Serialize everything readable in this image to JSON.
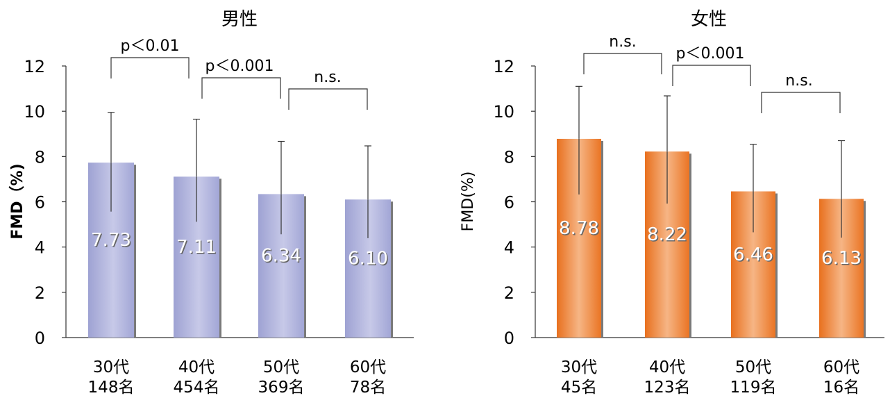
{
  "chart_data": [
    {
      "type": "bar",
      "title": "男性",
      "xlabel": "",
      "ylabel": "FMD（%)",
      "ylim": [
        0,
        12
      ],
      "yticks": [
        0,
        2,
        4,
        6,
        8,
        10,
        12
      ],
      "grid": false,
      "categories": [
        "30代",
        "40代",
        "50代",
        "60代"
      ],
      "counts": [
        "148名",
        "454名",
        "369名",
        "78名"
      ],
      "values": [
        7.73,
        7.11,
        6.34,
        6.1
      ],
      "value_labels": [
        "7.73",
        "7.11",
        "6.34",
        "6.10"
      ],
      "error_upper": [
        9.95,
        9.65,
        8.67,
        8.47
      ],
      "bar_color": "#b3b6dc",
      "significance": [
        {
          "from": 0,
          "to": 1,
          "label": "p＜0.01"
        },
        {
          "from": 1,
          "to": 2,
          "label": "p＜0.001"
        },
        {
          "from": 2,
          "to": 3,
          "label": "n.s."
        }
      ]
    },
    {
      "type": "bar",
      "title": "女性",
      "xlabel": "",
      "ylabel": "FMD(%)",
      "ylim": [
        0,
        12
      ],
      "yticks": [
        0,
        2,
        4,
        6,
        8,
        10,
        12
      ],
      "grid": false,
      "categories": [
        "30代",
        "40代",
        "50代",
        "60代"
      ],
      "counts": [
        "45名",
        "123名",
        "119名",
        "16名"
      ],
      "values": [
        8.78,
        8.22,
        6.46,
        6.13
      ],
      "value_labels": [
        "8.78",
        "8.22",
        "6.46",
        "6.13"
      ],
      "error_upper": [
        11.1,
        10.68,
        8.54,
        8.7
      ],
      "bar_color": "#f08a3c",
      "significance": [
        {
          "from": 0,
          "to": 1,
          "label": "n.s."
        },
        {
          "from": 1,
          "to": 2,
          "label": "p＜0.001"
        },
        {
          "from": 2,
          "to": 3,
          "label": "n.s."
        }
      ]
    }
  ]
}
